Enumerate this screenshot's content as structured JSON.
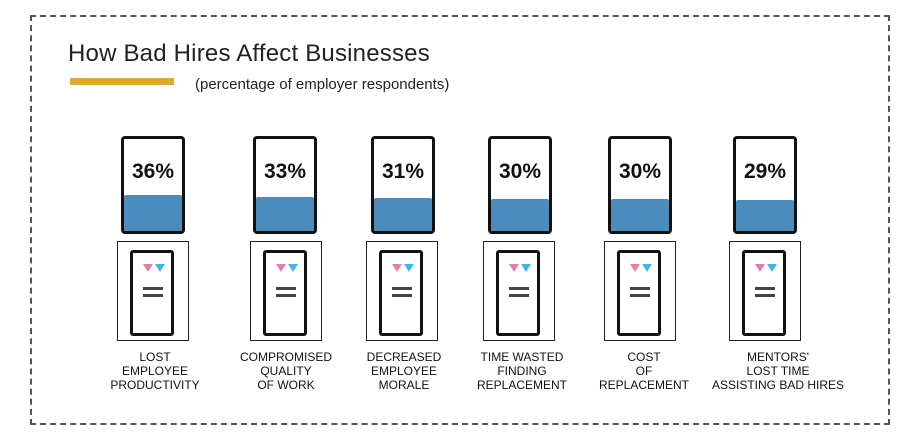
{
  "title": "How Bad Hires Affect Businesses",
  "subtitle": "(percentage of employer respondents)",
  "colors": {
    "accent": "#E2A632",
    "fill": "#4A8DBD",
    "pink": "#E07FAE",
    "blue": "#3FB7E3"
  },
  "chart_data": {
    "type": "bar",
    "title": "How Bad Hires Affect Businesses",
    "subtitle": "(percentage of employer respondents)",
    "categories": [
      "LOST EMPLOYEE PRODUCTIVITY",
      "COMPROMISED QUALITY OF WORK",
      "DECREASED EMPLOYEE MORALE",
      "TIME WASTED FINDING REPLACEMENT",
      "COST OF REPLACEMENT",
      "MENTORS' LOST TIME ASSISTING BAD HIRES"
    ],
    "values": [
      36,
      33,
      31,
      30,
      30,
      29
    ],
    "value_labels": [
      "36%",
      "33%",
      "31%",
      "30%",
      "30%",
      "29%"
    ],
    "label_lines": [
      [
        "LOST",
        "EMPLOYEE",
        "PRODUCTIVITY"
      ],
      [
        "COMPROMISED",
        "QUALITY",
        "OF WORK"
      ],
      [
        "DECREASED",
        "EMPLOYEE",
        "MORALE"
      ],
      [
        "TIME WASTED",
        "FINDING",
        "REPLACEMENT"
      ],
      [
        "COST",
        "OF",
        "REPLACEMENT"
      ],
      [
        "MENTORS'",
        "LOST TIME",
        "ASSISTING BAD HIRES"
      ]
    ],
    "xlabel": "",
    "ylabel": "",
    "ylim": [
      0,
      100
    ]
  }
}
